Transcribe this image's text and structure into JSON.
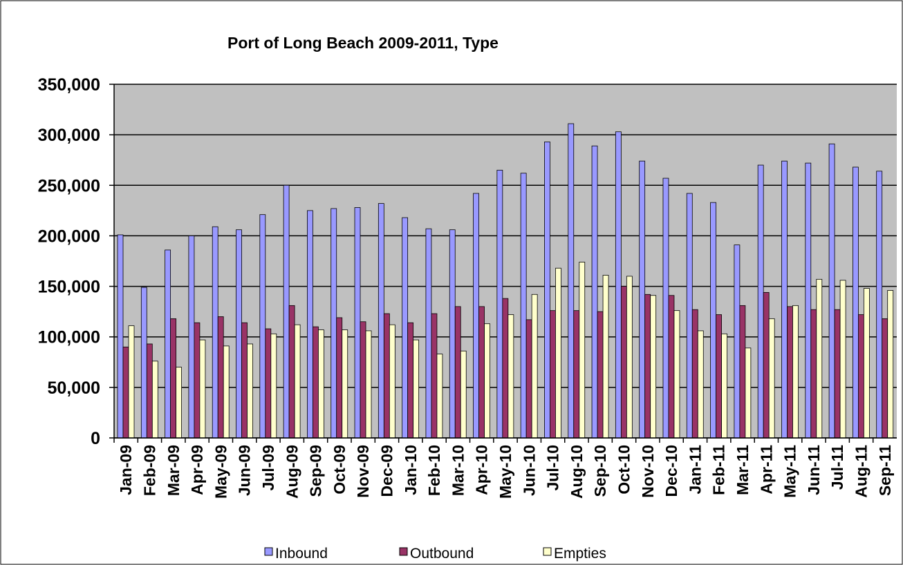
{
  "chart_data": {
    "type": "bar",
    "title": "Port of Long Beach 2009-2011, Type",
    "categories": [
      "Jan-09",
      "Feb-09",
      "Mar-09",
      "Apr-09",
      "May-09",
      "Jun-09",
      "Jul-09",
      "Aug-09",
      "Sep-09",
      "Oct-09",
      "Nov-09",
      "Dec-09",
      "Jan-10",
      "Feb-10",
      "Mar-10",
      "Apr-10",
      "May-10",
      "Jun-10",
      "Jul-10",
      "Aug-10",
      "Sep-10",
      "Oct-10",
      "Nov-10",
      "Dec-10",
      "Jan-11",
      "Feb-11",
      "Mar-11",
      "Apr-11",
      "May-11",
      "Jun-11",
      "Jul-11",
      "Aug-11",
      "Sep-11"
    ],
    "series": [
      {
        "name": "Inbound",
        "color": "#9999ff",
        "values": [
          201000,
          149000,
          186000,
          200000,
          209000,
          206000,
          221000,
          250000,
          225000,
          227000,
          228000,
          232000,
          218000,
          207000,
          206000,
          242000,
          265000,
          262000,
          293000,
          311000,
          289000,
          303000,
          274000,
          257000,
          242000,
          233000,
          191000,
          270000,
          274000,
          272000,
          291000,
          268000,
          264000
        ]
      },
      {
        "name": "Outbound",
        "color": "#993366",
        "values": [
          90000,
          93000,
          118000,
          114000,
          120000,
          114000,
          108000,
          131000,
          110000,
          119000,
          115000,
          123000,
          114000,
          123000,
          130000,
          130000,
          138000,
          117000,
          126000,
          126000,
          125000,
          150000,
          142000,
          141000,
          127000,
          122000,
          131000,
          144000,
          130000,
          127000,
          127000,
          122000,
          118000
        ]
      },
      {
        "name": "Empties",
        "color": "#ffffcc",
        "values": [
          111000,
          76000,
          70000,
          97000,
          91000,
          93000,
          103000,
          112000,
          107000,
          107000,
          106000,
          112000,
          97000,
          83000,
          86000,
          113000,
          122000,
          142000,
          168000,
          174000,
          161000,
          160000,
          141000,
          126000,
          106000,
          103000,
          89000,
          118000,
          131000,
          157000,
          156000,
          148000,
          146000
        ]
      }
    ],
    "ylim": [
      0,
      350000
    ],
    "yticks": [
      0,
      {
        "value": 50000,
        "label": "50,000"
      },
      {
        "value": 100000,
        "label": "100,000"
      },
      {
        "value": 150000,
        "label": "150,000"
      },
      {
        "value": 200000,
        "label": "200,000"
      },
      {
        "value": 250000,
        "label": "250,000"
      },
      {
        "value": 300000,
        "label": "300,000"
      },
      {
        "value": 350000,
        "label": "350,000"
      }
    ],
    "grid": true,
    "plot_background": "#c0c0c0",
    "legend": "bottom"
  }
}
